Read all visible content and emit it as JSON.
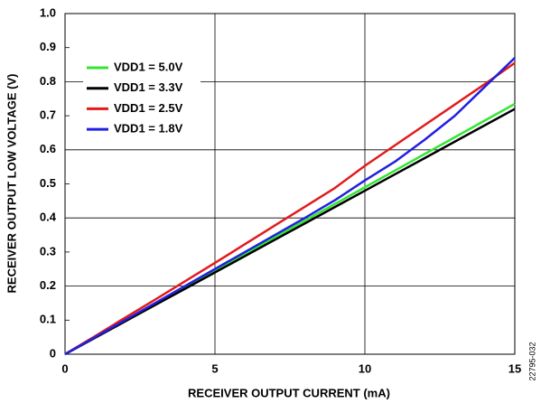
{
  "chart_data": {
    "type": "line",
    "xlabel": "RECEIVER OUTPUT CURRENT (mA)",
    "ylabel": "RECEIVER OUTPUT LOW VOLTAGE (V)",
    "side_note": "22795-032",
    "x": [
      0,
      1,
      2,
      3,
      4,
      5,
      6,
      7,
      8,
      9,
      10,
      11,
      12,
      13,
      14,
      15
    ],
    "series": [
      {
        "name": "VDD1 = 5.0V",
        "color": "#33e533",
        "values": [
          0,
          0.049,
          0.098,
          0.147,
          0.196,
          0.245,
          0.294,
          0.343,
          0.392,
          0.441,
          0.49,
          0.539,
          0.588,
          0.637,
          0.686,
          0.735
        ]
      },
      {
        "name": "VDD1 = 3.3V",
        "color": "#000000",
        "values": [
          0,
          0.048,
          0.096,
          0.144,
          0.192,
          0.24,
          0.288,
          0.336,
          0.384,
          0.432,
          0.48,
          0.528,
          0.576,
          0.624,
          0.672,
          0.72
        ]
      },
      {
        "name": "VDD1 = 2.5V",
        "color": "#e31a1c",
        "values": [
          0,
          0.053,
          0.107,
          0.16,
          0.214,
          0.268,
          0.323,
          0.378,
          0.433,
          0.488,
          0.553,
          0.613,
          0.673,
          0.733,
          0.793,
          0.855
        ]
      },
      {
        "name": "VDD1 = 1.8V",
        "color": "#2020e0",
        "values": [
          0,
          0.05,
          0.1,
          0.15,
          0.2,
          0.25,
          0.3,
          0.35,
          0.4,
          0.452,
          0.51,
          0.565,
          0.63,
          0.7,
          0.785,
          0.87
        ]
      }
    ],
    "xlim": [
      0,
      15
    ],
    "xticks": [
      0,
      5,
      10,
      15
    ],
    "ylim": [
      0,
      1.0
    ],
    "yticks": [
      0,
      0.1,
      0.2,
      0.3,
      0.4,
      0.5,
      0.6,
      0.7,
      0.8,
      0.9,
      {
        "value": 1,
        "label": "1.0"
      }
    ],
    "grid": true,
    "legend": "upper left"
  }
}
